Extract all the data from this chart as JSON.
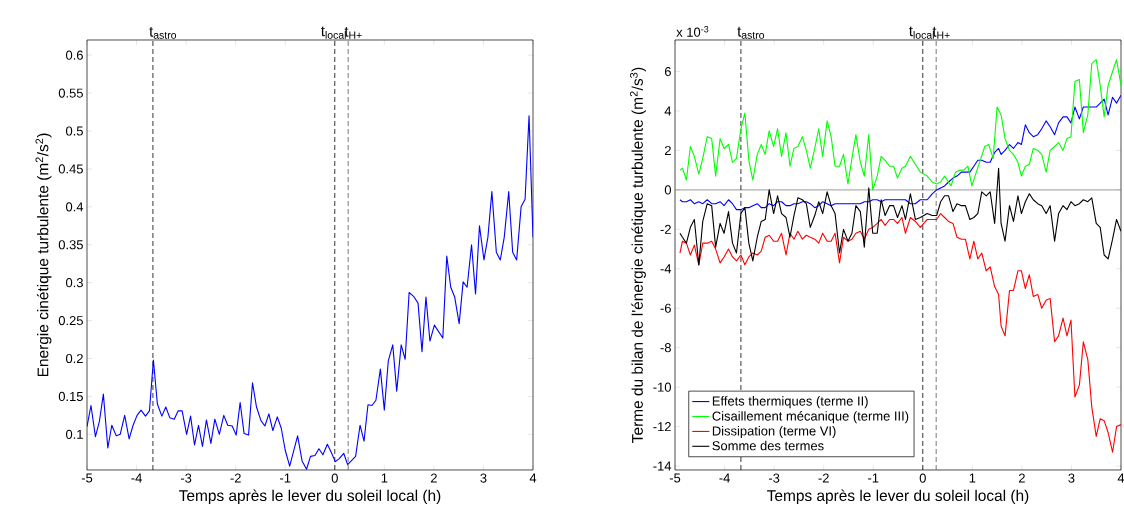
{
  "chart_data": [
    {
      "type": "line",
      "xlabel": "Temps après le lever du soleil local (h)",
      "ylabel": "Energie cinétique turbulente (m$^{2}$/s$^{2}$)",
      "xlim": [
        -5,
        4
      ],
      "xticks": [
        -5,
        -4,
        -3,
        -2,
        -1,
        0,
        1,
        2,
        3,
        4
      ],
      "ylim": [
        0.053,
        0.62
      ],
      "yticks": [
        0.1,
        0.15,
        0.2,
        0.25,
        0.3,
        0.35,
        0.4,
        0.45,
        0.5,
        0.55,
        0.6
      ],
      "ref_lines": [
        {
          "axis": "x",
          "value": -3.67,
          "label": "t$_{astro}$",
          "color": "#000000",
          "line_style": "dashed"
        },
        {
          "axis": "x",
          "value": 0,
          "label": "t$_{local}$",
          "color": "#000000",
          "line_style": "dashed"
        },
        {
          "axis": "x",
          "value": 0.27,
          "label": "t$_{H+}$",
          "color": "#555555",
          "line_style": "dashed"
        }
      ],
      "marker": "none",
      "line_style": "solid",
      "series": [
        {
          "color": "#0000ff",
          "x": [
            -5,
            -4.92,
            -4.83,
            -4.75,
            -4.67,
            -4.58,
            -4.5,
            -4.41,
            -4.33,
            -4.24,
            -4.15,
            -4.07,
            -3.99,
            -3.91,
            -3.82,
            -3.74,
            -3.66,
            -3.58,
            -3.49,
            -3.41,
            -3.33,
            -3.24,
            -3.16,
            -3.08,
            -2.99,
            -2.91,
            -2.83,
            -2.75,
            -2.67,
            -2.59,
            -2.5,
            -2.42,
            -2.33,
            -2.24,
            -2.16,
            -2.07,
            -1.99,
            -1.91,
            -1.83,
            -1.74,
            -1.66,
            -1.58,
            -1.49,
            -1.41,
            -1.33,
            -1.25,
            -1.16,
            -1.08,
            -1,
            -0.91,
            -0.75,
            -0.66,
            -0.57,
            -0.49,
            -0.4,
            -0.32,
            -0.24,
            -0.15,
            -0.07,
            0.01,
            0.09,
            0.18,
            0.26,
            0.42,
            0.51,
            0.59,
            0.67,
            0.75,
            0.83,
            0.92,
            1,
            1.08,
            1.17,
            1.25,
            1.34,
            1.42,
            1.5,
            1.59,
            1.68,
            1.76,
            1.84,
            1.92,
            2.01,
            2.18,
            2.26,
            2.34,
            2.42,
            2.51,
            2.59,
            2.67,
            2.76,
            2.84,
            2.92,
            3.01,
            3.09,
            3.17,
            3.26,
            3.34,
            3.42,
            3.51,
            3.59,
            3.67,
            3.76,
            3.84,
            3.92,
            4
          ],
          "values": [
            0.11,
            0.138,
            0.097,
            0.117,
            0.153,
            0.082,
            0.112,
            0.098,
            0.1,
            0.125,
            0.094,
            0.112,
            0.125,
            0.132,
            0.124,
            0.131,
            0.198,
            0.14,
            0.124,
            0.136,
            0.122,
            0.12,
            0.131,
            0.131,
            0.1,
            0.124,
            0.086,
            0.112,
            0.084,
            0.119,
            0.088,
            0.12,
            0.1,
            0.125,
            0.112,
            0.111,
            0.099,
            0.142,
            0.101,
            0.099,
            0.168,
            0.136,
            0.118,
            0.111,
            0.127,
            0.105,
            0.123,
            0.108,
            0.079,
            0.058,
            0.098,
            0.065,
            0.054,
            0.071,
            0.072,
            0.081,
            0.073,
            0.087,
            0.076,
            0.064,
            0.068,
            0.075,
            0.06,
            0.071,
            0.112,
            0.091,
            0.139,
            0.138,
            0.145,
            0.186,
            0.132,
            0.197,
            0.218,
            0.157,
            0.218,
            0.199,
            0.287,
            0.282,
            0.273,
            0.209,
            0.281,
            0.223,
            0.244,
            0.227,
            0.335,
            0.294,
            0.281,
            0.246,
            0.301,
            0.294,
            0.35,
            0.285,
            0.375,
            0.33,
            0.36,
            0.42,
            0.34,
            0.33,
            0.36,
            0.42,
            0.34,
            0.33,
            0.4,
            0.41,
            0.52,
            0.36
          ]
        }
      ]
    },
    {
      "type": "line",
      "xlabel": "Temps après le lever du soleil local (h)",
      "ylabel": "Terme du bilan de l'énergie cinétique turbulente (m$^{2}$/s$^{3}$)",
      "annotations": [
        "x 10$^{-3}$"
      ],
      "xlim": [
        -5,
        4
      ],
      "xticks": [
        -5,
        -4,
        -3,
        -2,
        -1,
        0,
        1,
        2,
        3,
        4
      ],
      "ylim": [
        -14.2,
        7.6
      ],
      "yticks": [
        -14,
        -12,
        -10,
        -8,
        -6,
        -4,
        -2,
        0,
        2,
        4,
        6
      ],
      "ref_lines": [
        {
          "axis": "y",
          "value": 0,
          "color": "#808080",
          "line_style": "solid"
        },
        {
          "axis": "x",
          "value": -3.67,
          "label": "t$_{astro}$",
          "color": "#000000",
          "line_style": "dashed"
        },
        {
          "axis": "x",
          "value": 0,
          "label": "t$_{local}$",
          "color": "#000000",
          "line_style": "dashed"
        },
        {
          "axis": "x",
          "value": 0.27,
          "label": "t$_{H+}$",
          "color": "#555555",
          "line_style": "dashed"
        }
      ],
      "legend": "bottom left",
      "marker": "none",
      "line_style": "solid",
      "series": [
        {
          "name": "Effets thermiques (terme II)",
          "color": "#0000ff",
          "x": [
            -4.9,
            -4.85,
            -4.77,
            -4.69,
            -4.61,
            -4.52,
            -4.44,
            -4.35,
            -4.26,
            -4.18,
            -4.09,
            -4.01,
            -3.92,
            -3.84,
            -3.76,
            -3.67,
            -3.59,
            -3.51,
            -3.43,
            -3.34,
            -3.26,
            -3.18,
            -3.1,
            -3.01,
            -2.93,
            -2.85,
            -2.76,
            -2.68,
            -2.6,
            -2.52,
            -2.43,
            -2.35,
            -2.27,
            -2.18,
            -2.1,
            -2.02,
            -1.93,
            -1.85,
            -1.77,
            -1.68,
            -1.6,
            -1.51,
            -1.43,
            -1.35,
            -1.26,
            -1.18,
            -1.09,
            -1.01,
            -0.92,
            -0.84,
            -0.76,
            -0.67,
            -0.59,
            -0.51,
            -0.42,
            -0.35,
            -0.25,
            -0.15,
            -0.05,
            0.09,
            0.19,
            0.28,
            0.36,
            0.44,
            0.52,
            0.61,
            0.69,
            0.78,
            0.86,
            0.95,
            1.03,
            1.11,
            1.19,
            1.28,
            1.36,
            1.45,
            1.53,
            1.58,
            1.66,
            1.75,
            1.83,
            1.92,
            1.99,
            2.07,
            2.15,
            2.23,
            2.32,
            2.4,
            2.49,
            2.57,
            2.66,
            2.74,
            2.83,
            2.91,
            2.99,
            3.07,
            3.16,
            3.24,
            3.33,
            3.41,
            3.5,
            3.58,
            3.66,
            3.74,
            3.83,
            3.91,
            4
          ],
          "values": [
            -0.5,
            -0.6,
            -0.6,
            -0.5,
            -0.7,
            -0.6,
            -0.7,
            -0.5,
            -0.7,
            -0.7,
            -0.6,
            -0.8,
            -0.5,
            -0.7,
            -1.0,
            -1.0,
            -0.9,
            -0.9,
            -0.8,
            -0.7,
            -0.9,
            -0.9,
            -0.7,
            -0.8,
            -0.6,
            -0.6,
            -0.8,
            -0.8,
            -0.7,
            -0.7,
            -0.6,
            -0.6,
            -0.7,
            -0.9,
            -0.8,
            -0.6,
            -0.7,
            -0.8,
            -0.7,
            -0.7,
            -0.7,
            -0.7,
            -0.7,
            -0.7,
            -0.7,
            -0.6,
            -0.6,
            -0.5,
            -0.5,
            -0.6,
            -0.5,
            -0.5,
            -0.5,
            -0.5,
            -0.5,
            -0.5,
            -0.7,
            -0.7,
            -0.5,
            -0.5,
            -0.2,
            0.0,
            0.1,
            0.2,
            0.4,
            0.6,
            0.7,
            0.9,
            0.9,
            0.9,
            1.2,
            1.5,
            1.5,
            1.4,
            1.4,
            1.9,
            2.1,
            1.8,
            2.0,
            2.3,
            2.1,
            2.4,
            2.3,
            3.3,
            2.9,
            2.7,
            2.8,
            3.1,
            3.5,
            3.2,
            2.8,
            3.4,
            3.7,
            3.7,
            3.4,
            4.2,
            3.6,
            4.2,
            4.2,
            4.2,
            4.2,
            4.4,
            4.6,
            3.8,
            4.7,
            4.4,
            4.8
          ]
        },
        {
          "name": "Cisaillement mécanique (terme III)",
          "color": "#00ff00",
          "x": [
            -4.9,
            -4.85,
            -4.77,
            -4.69,
            -4.61,
            -4.52,
            -4.44,
            -4.35,
            -4.26,
            -4.18,
            -4.09,
            -4.01,
            -3.92,
            -3.84,
            -3.76,
            -3.67,
            -3.59,
            -3.51,
            -3.43,
            -3.34,
            -3.26,
            -3.18,
            -3.1,
            -3.01,
            -2.93,
            -2.85,
            -2.76,
            -2.68,
            -2.6,
            -2.52,
            -2.43,
            -2.35,
            -2.27,
            -2.18,
            -2.1,
            -2.02,
            -1.93,
            -1.85,
            -1.77,
            -1.68,
            -1.6,
            -1.51,
            -1.43,
            -1.35,
            -1.26,
            -1.18,
            -1.09,
            -1.01,
            -0.92,
            -0.84,
            -0.76,
            -0.67,
            -0.59,
            -0.51,
            -0.42,
            -0.35,
            -0.25,
            -0.15,
            -0.05,
            0.09,
            0.19,
            0.28,
            0.36,
            0.44,
            0.57,
            0.66,
            0.74,
            0.83,
            0.91,
            0.99,
            1.08,
            1.16,
            1.25,
            1.33,
            1.42,
            1.5,
            1.58,
            1.66,
            1.75,
            1.83,
            1.92,
            1.99,
            2.07,
            2.15,
            2.23,
            2.32,
            2.4,
            2.49,
            2.57,
            2.66,
            2.74,
            2.83,
            2.91,
            2.99,
            3.07,
            3.16,
            3.24,
            3.33,
            3.41,
            3.5,
            3.58,
            3.66,
            3.74,
            3.83,
            3.91,
            4
          ],
          "values": [
            1.0,
            1.1,
            0.5,
            2.2,
            1.7,
            0.8,
            1.6,
            2.7,
            2.6,
            0.7,
            2.6,
            2.1,
            2.3,
            1.4,
            1.6,
            3.1,
            3.9,
            1.5,
            0.5,
            1.8,
            2.3,
            1.8,
            3.0,
            2.2,
            3.1,
            1.7,
            2.9,
            1.2,
            2.1,
            2.2,
            2.7,
            2.0,
            1.1,
            2.1,
            3.1,
            1.7,
            3.5,
            2.7,
            1.2,
            1.2,
            1.8,
            0.3,
            1.6,
            2.8,
            1.4,
            0.7,
            2.8,
            0.0,
            0.7,
            1.7,
            1.5,
            1.2,
            1.2,
            0.6,
            1.1,
            1.2,
            1.7,
            1.3,
            0.9,
            0.7,
            0.4,
            0.3,
            0.4,
            0.7,
            0.2,
            0.9,
            1.0,
            1.0,
            1.2,
            0.2,
            0.9,
            1.5,
            2.2,
            2.3,
            1.6,
            4.2,
            3.8,
            2.6,
            2.0,
            1.8,
            1.4,
            0.7,
            1.2,
            1.3,
            2.1,
            2.0,
            1.8,
            0.9,
            2.0,
            2.2,
            2.4,
            2.0,
            2.6,
            2.7,
            5.5,
            5.6,
            2.9,
            3.8,
            6.4,
            6.6,
            5.3,
            3.7,
            5.3,
            6.0,
            6.6,
            5.3
          ]
        },
        {
          "name": "Dissipation (terme VI)",
          "color": "#ff0000",
          "x": [
            -4.9,
            -4.85,
            -4.77,
            -4.69,
            -4.61,
            -4.52,
            -4.44,
            -4.35,
            -4.26,
            -4.18,
            -4.09,
            -4.01,
            -3.92,
            -3.84,
            -3.76,
            -3.67,
            -3.59,
            -3.51,
            -3.43,
            -3.34,
            -3.26,
            -3.18,
            -3.1,
            -3.01,
            -2.93,
            -2.85,
            -2.76,
            -2.68,
            -2.6,
            -2.52,
            -2.43,
            -2.35,
            -2.27,
            -2.18,
            -2.1,
            -2.02,
            -1.93,
            -1.85,
            -1.77,
            -1.68,
            -1.6,
            -1.51,
            -1.43,
            -1.35,
            -1.26,
            -1.18,
            -1.09,
            -1.01,
            -0.92,
            -0.84,
            -0.76,
            -0.67,
            -0.59,
            -0.51,
            -0.42,
            -0.35,
            -0.25,
            -0.15,
            -0.05,
            0.09,
            0.19,
            0.28,
            0.36,
            0.44,
            0.52,
            0.61,
            0.69,
            0.78,
            0.86,
            0.95,
            1.03,
            1.11,
            1.19,
            1.28,
            1.36,
            1.45,
            1.53,
            1.58,
            1.66,
            1.75,
            1.83,
            1.92,
            1.99,
            2.07,
            2.15,
            2.23,
            2.32,
            2.4,
            2.49,
            2.57,
            2.66,
            2.74,
            2.83,
            2.91,
            2.99,
            3.07,
            3.16,
            3.24,
            3.33,
            3.41,
            3.5,
            3.58,
            3.66,
            3.74,
            3.83,
            3.91,
            4
          ],
          "values": [
            -3.2,
            -2.6,
            -2.7,
            -3.3,
            -2.8,
            -3.8,
            -2.7,
            -2.7,
            -2.6,
            -3.0,
            -3.7,
            -3.4,
            -3.0,
            -3.4,
            -3.6,
            -3.3,
            -3.8,
            -3.4,
            -3.2,
            -3.3,
            -3.1,
            -2.4,
            -2.3,
            -2.6,
            -2.6,
            -2.2,
            -3.3,
            -2.2,
            -2.5,
            -2.1,
            -2.5,
            -2.3,
            -2.4,
            -2.5,
            -2.7,
            -2.2,
            -2.6,
            -2.6,
            -2.2,
            -3.7,
            -2.4,
            -2.6,
            -2.5,
            -2.2,
            -2.1,
            -2.5,
            -2.0,
            -1.9,
            -1.7,
            -1.5,
            -1.8,
            -1.5,
            -1.5,
            -1.7,
            -1.4,
            -2.2,
            -1.4,
            -1.6,
            -1.9,
            -1.5,
            -1.5,
            -1.5,
            -1.2,
            -1.4,
            -1.6,
            -1.7,
            -2.4,
            -2.5,
            -2.5,
            -3.5,
            -2.6,
            -3.5,
            -3.2,
            -4.1,
            -3.9,
            -4.9,
            -5.3,
            -6.9,
            -7.4,
            -5.1,
            -5.1,
            -4.1,
            -4.1,
            -5.0,
            -4.3,
            -5.4,
            -5.3,
            -6.0,
            -5.6,
            -5.5,
            -7.7,
            -7.4,
            -6.5,
            -7.4,
            -6.6,
            -10.5,
            -9.9,
            -7.7,
            -8.6,
            -11.0,
            -12.5,
            -11.6,
            -11.7,
            -12.3,
            -13.3,
            -12.0,
            -11.9
          ]
        },
        {
          "name": "Somme des termes",
          "color": "#000000",
          "x": [
            -4.9,
            -4.85,
            -4.77,
            -4.69,
            -4.61,
            -4.52,
            -4.44,
            -4.35,
            -4.26,
            -4.18,
            -4.09,
            -4.01,
            -3.92,
            -3.84,
            -3.76,
            -3.67,
            -3.59,
            -3.51,
            -3.43,
            -3.34,
            -3.26,
            -3.18,
            -3.1,
            -3.01,
            -2.93,
            -2.85,
            -2.76,
            -2.68,
            -2.6,
            -2.52,
            -2.43,
            -2.35,
            -2.27,
            -2.18,
            -2.1,
            -2.02,
            -1.93,
            -1.85,
            -1.77,
            -1.68,
            -1.6,
            -1.51,
            -1.43,
            -1.35,
            -1.26,
            -1.18,
            -1.09,
            -1.01,
            -0.92,
            -0.84,
            -0.76,
            -0.67,
            -0.59,
            -0.51,
            -0.42,
            -0.35,
            -0.25,
            -0.15,
            -0.05,
            0.09,
            0.19,
            0.28,
            0.36,
            0.44,
            0.52,
            0.61,
            0.69,
            0.78,
            0.86,
            0.95,
            1.03,
            1.11,
            1.19,
            1.28,
            1.36,
            1.45,
            1.53,
            1.58,
            1.66,
            1.75,
            1.83,
            1.92,
            1.99,
            2.07,
            2.15,
            2.23,
            2.32,
            2.4,
            2.49,
            2.57,
            2.66,
            2.74,
            2.83,
            2.91,
            2.99,
            3.07,
            3.16,
            3.24,
            3.33,
            3.41,
            3.5,
            3.58,
            3.66,
            3.74,
            3.83,
            3.91,
            4
          ],
          "values": [
            -2.2,
            -2.4,
            -2.7,
            -1.9,
            -1.5,
            -3.8,
            -1.6,
            -0.7,
            -0.8,
            -2.9,
            -1.7,
            -2.2,
            -1.1,
            -2.7,
            -3.2,
            -1.2,
            -0.9,
            -2.7,
            -3.6,
            -2.4,
            -1.6,
            -1.5,
            0.0,
            -1.2,
            -0.3,
            -1.2,
            -1.4,
            -2.4,
            -1.3,
            -0.4,
            -0.5,
            -0.7,
            -1.9,
            -1.3,
            -0.6,
            -1.2,
            -0.1,
            -0.8,
            -1.2,
            -3.2,
            -2.0,
            -2.6,
            -2.2,
            -0.8,
            -1.1,
            -2.9,
            0.1,
            -2.2,
            -2.2,
            -0.5,
            -1.3,
            -0.8,
            -0.8,
            -1.4,
            -0.8,
            -1.5,
            -0.2,
            -1.5,
            -1.4,
            -1.2,
            -1.3,
            -1.3,
            -0.6,
            -0.3,
            -0.3,
            -1.1,
            -0.7,
            -0.8,
            -0.8,
            -1.5,
            -1.4,
            -1.2,
            -0.1,
            -0.3,
            -0.1,
            -1.7,
            1.1,
            -1.7,
            -2.6,
            -0.8,
            -1.6,
            -0.3,
            -1.2,
            -0.6,
            -0.2,
            -0.5,
            -0.7,
            -0.8,
            -1.2,
            -0.8,
            -2.6,
            -1.2,
            -0.8,
            -1.0,
            -0.6,
            -0.8,
            -0.7,
            -0.5,
            -0.6,
            -0.4,
            -1.7,
            -1.9,
            -3.3,
            -3.5,
            -2.5,
            -1.5,
            -2.1
          ]
        }
      ]
    }
  ]
}
